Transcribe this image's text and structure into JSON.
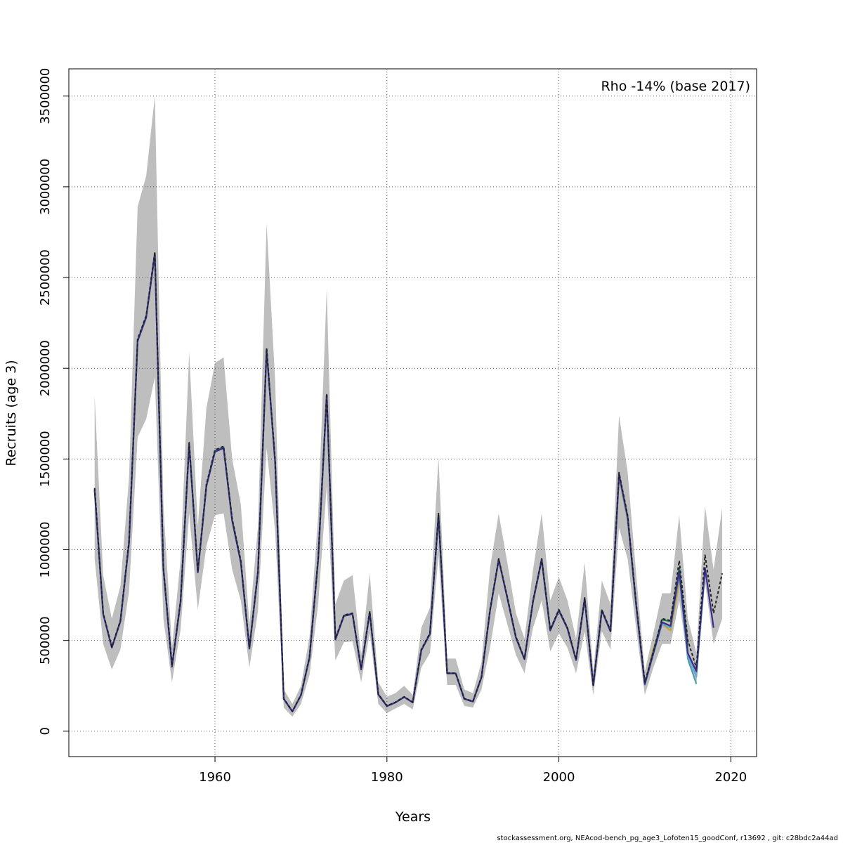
{
  "chart_data": {
    "type": "line",
    "title": "",
    "xlabel": "Years",
    "ylabel": "Recruits (age 3)",
    "annotation": "Rho -14% (base 2017)",
    "footer": "stockassessment.org, NEAcod-bench_pg_age3_Lofoten15_goodConf, r13692 , git: c28bdc2a44ad",
    "xlim": [
      1943,
      2023
    ],
    "ylim": [
      -140000,
      3650000
    ],
    "x_ticks": [
      1960,
      1980,
      2000,
      2020
    ],
    "x_tick_labels": [
      "1960",
      "1980",
      "2000",
      "2020"
    ],
    "y_ticks": [
      0,
      500000,
      1000000,
      1500000,
      2000000,
      2500000,
      3000000,
      3500000
    ],
    "y_tick_labels": [
      "0",
      "500000",
      "1000000",
      "1500000",
      "2000000",
      "2500000",
      "3000000",
      "3500000"
    ],
    "grid": true,
    "colors": {
      "band": "#bebebe",
      "base": "#c8a02a",
      "peel1": "#1f7a4e",
      "peel2": "#6aa6d6",
      "peel3": "#3c2c8c",
      "peel4": "#4aa0a8",
      "full": "#222222"
    },
    "confidence_band": {
      "x": [
        1946,
        1947,
        1948,
        1949,
        1950,
        1951,
        1952,
        1953,
        1954,
        1955,
        1956,
        1957,
        1958,
        1959,
        1960,
        1961,
        1962,
        1963,
        1964,
        1965,
        1966,
        1967,
        1968,
        1969,
        1970,
        1971,
        1972,
        1973,
        1974,
        1975,
        1976,
        1977,
        1978,
        1979,
        1980,
        1981,
        1982,
        1983,
        1984,
        1985,
        1986,
        1987,
        1988,
        1989,
        1990,
        1991,
        1992,
        1993,
        1994,
        1995,
        1996,
        1997,
        1998,
        1999,
        2000,
        2001,
        2002,
        2003,
        2004,
        2005,
        2006,
        2007,
        2008,
        2009,
        2010,
        2011,
        2012,
        2013,
        2014,
        2015,
        2016,
        2017,
        2018,
        2019
      ],
      "lower": [
        950000,
        480000,
        340000,
        450000,
        770000,
        1620000,
        1720000,
        1950000,
        620000,
        270000,
        560000,
        1200000,
        670000,
        1020000,
        1190000,
        1200000,
        890000,
        720000,
        350000,
        660000,
        1560000,
        1100000,
        130000,
        80000,
        150000,
        310000,
        700000,
        1350000,
        390000,
        490000,
        495000,
        270000,
        540000,
        150000,
        100000,
        125000,
        150000,
        120000,
        350000,
        430000,
        970000,
        255000,
        255000,
        140000,
        130000,
        230000,
        460000,
        760000,
        590000,
        420000,
        320000,
        570000,
        720000,
        440000,
        540000,
        460000,
        320000,
        550000,
        200000,
        550000,
        450000,
        1120000,
        950000,
        560000,
        200000,
        350000,
        480000,
        480000,
        720000,
        380000,
        260000,
        820000,
        480000,
        620000
      ],
      "upper": [
        1850000,
        860000,
        620000,
        800000,
        1400000,
        2890000,
        3060000,
        3500000,
        1250000,
        460000,
        950000,
        2090000,
        1130000,
        1780000,
        2030000,
        2060000,
        1500000,
        1250000,
        590000,
        1130000,
        2800000,
        1930000,
        230000,
        150000,
        250000,
        520000,
        1190000,
        2440000,
        700000,
        830000,
        860000,
        420000,
        870000,
        270000,
        190000,
        210000,
        250000,
        200000,
        570000,
        680000,
        1510000,
        400000,
        400000,
        230000,
        210000,
        380000,
        900000,
        1200000,
        930000,
        650000,
        510000,
        890000,
        1200000,
        720000,
        850000,
        720000,
        510000,
        930000,
        330000,
        830000,
        700000,
        1740000,
        1430000,
        860000,
        330000,
        540000,
        760000,
        760000,
        1190000,
        620000,
        430000,
        1240000,
        890000,
        1230000
      ]
    },
    "series": [
      {
        "x": [
          1946,
          1947,
          1948,
          1949,
          1950,
          1951,
          1952,
          1953,
          1954,
          1955,
          1956,
          1957,
          1958,
          1959,
          1960,
          1961,
          1962,
          1963,
          1964,
          1965,
          1966,
          1967,
          1968,
          1969,
          1970,
          1971,
          1972,
          1973,
          1974,
          1975,
          1976,
          1977,
          1978,
          1979,
          1980,
          1981,
          1982,
          1983,
          1984,
          1985,
          1986,
          1987,
          1988,
          1989,
          1990,
          1991,
          1992,
          1993,
          1994,
          1995,
          1996,
          1997,
          1998,
          1999,
          2000,
          2001,
          2002,
          2003,
          2004,
          2005,
          2006,
          2007,
          2008,
          2009,
          2010,
          2011,
          2012,
          2013,
          2014,
          2015,
          2016,
          2017,
          2018,
          2019
        ],
        "values": [
          1340000,
          650000,
          465000,
          610000,
          1050000,
          2160000,
          2290000,
          2640000,
          900000,
          360000,
          720000,
          1590000,
          880000,
          1360000,
          1550000,
          1570000,
          1170000,
          940000,
          460000,
          880000,
          2110000,
          1490000,
          180000,
          110000,
          200000,
          410000,
          950000,
          1860000,
          510000,
          640000,
          650000,
          345000,
          660000,
          205000,
          140000,
          160000,
          190000,
          160000,
          450000,
          540000,
          1200000,
          320000,
          320000,
          180000,
          165000,
          300000,
          670000,
          950000,
          740000,
          520000,
          400000,
          720000,
          950000,
          560000,
          670000,
          570000,
          395000,
          735000,
          255000,
          670000,
          555000,
          1425000,
          1190000,
          700000,
          270000,
          440000,
          620000,
          610000,
          940000,
          500000,
          350000,
          970000,
          650000,
          870000
        ]
      },
      {
        "x": [
          1946,
          1947,
          1948,
          1949,
          1950,
          1951,
          1952,
          1953,
          1954,
          1955,
          1956,
          1957,
          1958,
          1959,
          1960,
          1961,
          1962,
          1963,
          1964,
          1965,
          1966,
          1967,
          1968,
          1969,
          1970,
          1971,
          1972,
          1973,
          1974,
          1975,
          1976,
          1977,
          1978,
          1979,
          1980,
          1981,
          1982,
          1983,
          1984,
          1985,
          1986,
          1987,
          1988,
          1989,
          1990,
          1991,
          1992,
          1993,
          1994,
          1995,
          1996,
          1997,
          1998,
          1999,
          2000,
          2001,
          2002,
          2003,
          2004,
          2005,
          2006,
          2007,
          2008,
          2009,
          2010,
          2011,
          2012,
          2013,
          2014,
          2015,
          2016,
          2017,
          2018
        ],
        "values": [
          1330000,
          645000,
          460000,
          605000,
          1040000,
          2150000,
          2280000,
          2630000,
          895000,
          355000,
          715000,
          1580000,
          875000,
          1350000,
          1540000,
          1560000,
          1160000,
          930000,
          455000,
          875000,
          2100000,
          1480000,
          178000,
          108000,
          198000,
          405000,
          945000,
          1850000,
          505000,
          635000,
          645000,
          340000,
          655000,
          202000,
          138000,
          158000,
          188000,
          158000,
          445000,
          535000,
          1190000,
          318000,
          318000,
          178000,
          163000,
          297000,
          665000,
          945000,
          735000,
          515000,
          397000,
          715000,
          945000,
          555000,
          665000,
          565000,
          392000,
          730000,
          252000,
          665000,
          550000,
          1415000,
          1180000,
          690000,
          260000,
          430000,
          600000,
          580000,
          880000,
          430000,
          330000,
          900000,
          570000
        ]
      },
      {
        "x": [
          1946,
          1947,
          1948,
          1949,
          1950,
          1951,
          1952,
          1953,
          1954,
          1955,
          1956,
          1957,
          1958,
          1959,
          1960,
          1961,
          1962,
          1963,
          1964,
          1965,
          1966,
          1967,
          1968,
          1969,
          1970,
          1971,
          1972,
          1973,
          1974,
          1975,
          1976,
          1977,
          1978,
          1979,
          1980,
          1981,
          1982,
          1983,
          1984,
          1985,
          1986,
          1987,
          1988,
          1989,
          1990,
          1991,
          1992,
          1993,
          1994,
          1995,
          1996,
          1997,
          1998,
          1999,
          2000,
          2001,
          2002,
          2003,
          2004,
          2005,
          2006,
          2007,
          2008,
          2009,
          2010,
          2011,
          2012,
          2013,
          2014,
          2015,
          2016,
          2017
        ],
        "values": [
          1330000,
          645000,
          460000,
          605000,
          1040000,
          2150000,
          2280000,
          2630000,
          895000,
          355000,
          715000,
          1580000,
          875000,
          1350000,
          1540000,
          1560000,
          1160000,
          930000,
          455000,
          875000,
          2100000,
          1480000,
          178000,
          108000,
          198000,
          405000,
          945000,
          1850000,
          505000,
          635000,
          645000,
          340000,
          655000,
          202000,
          138000,
          158000,
          188000,
          158000,
          445000,
          535000,
          1195000,
          318000,
          318000,
          178000,
          163000,
          297000,
          665000,
          945000,
          735000,
          515000,
          397000,
          715000,
          945000,
          555000,
          665000,
          565000,
          392000,
          730000,
          252000,
          665000,
          550000,
          1410000,
          1175000,
          690000,
          255000,
          425000,
          590000,
          570000,
          870000,
          420000,
          300000,
          880000
        ]
      },
      {
        "x": [
          1946,
          1947,
          1948,
          1949,
          1950,
          1951,
          1952,
          1953,
          1954,
          1955,
          1956,
          1957,
          1958,
          1959,
          1960,
          1961,
          1962,
          1963,
          1964,
          1965,
          1966,
          1967,
          1968,
          1969,
          1970,
          1971,
          1972,
          1973,
          1974,
          1975,
          1976,
          1977,
          1978,
          1979,
          1980,
          1981,
          1982,
          1983,
          1984,
          1985,
          1986,
          1987,
          1988,
          1989,
          1990,
          1991,
          1992,
          1993,
          1994,
          1995,
          1996,
          1997,
          1998,
          1999,
          2000,
          2001,
          2002,
          2003,
          2004,
          2005,
          2006,
          2007,
          2008,
          2009,
          2010,
          2011,
          2012,
          2013,
          2014,
          2015,
          2016
        ],
        "values": [
          1330000,
          645000,
          460000,
          605000,
          1040000,
          2150000,
          2280000,
          2630000,
          895000,
          355000,
          715000,
          1580000,
          875000,
          1350000,
          1540000,
          1560000,
          1160000,
          930000,
          455000,
          875000,
          2100000,
          1480000,
          178000,
          108000,
          198000,
          405000,
          945000,
          1850000,
          505000,
          635000,
          645000,
          340000,
          655000,
          202000,
          138000,
          158000,
          188000,
          158000,
          445000,
          535000,
          1195000,
          318000,
          318000,
          178000,
          163000,
          297000,
          665000,
          945000,
          735000,
          515000,
          397000,
          715000,
          945000,
          555000,
          665000,
          565000,
          392000,
          730000,
          252000,
          665000,
          550000,
          1405000,
          1170000,
          685000,
          255000,
          430000,
          595000,
          575000,
          860000,
          400000,
          260000
        ]
      },
      {
        "x": [
          1946,
          1947,
          1948,
          1949,
          1950,
          1951,
          1952,
          1953,
          1954,
          1955,
          1956,
          1957,
          1958,
          1959,
          1960,
          1961,
          1962,
          1963,
          1964,
          1965,
          1966,
          1967,
          1968,
          1969,
          1970,
          1971,
          1972,
          1973,
          1974,
          1975,
          1976,
          1977,
          1978,
          1979,
          1980,
          1981,
          1982,
          1983,
          1984,
          1985,
          1986,
          1987,
          1988,
          1989,
          1990,
          1991,
          1992,
          1993,
          1994,
          1995,
          1996,
          1997,
          1998,
          1999,
          2000,
          2001,
          2002,
          2003,
          2004,
          2005,
          2006,
          2007,
          2008,
          2009,
          2010,
          2011,
          2012,
          2013,
          2014,
          2015
        ],
        "values": [
          1335000,
          648000,
          462000,
          608000,
          1045000,
          2155000,
          2285000,
          2635000,
          898000,
          358000,
          718000,
          1585000,
          878000,
          1355000,
          1545000,
          1565000,
          1165000,
          935000,
          458000,
          878000,
          2105000,
          1485000,
          179000,
          109000,
          199000,
          408000,
          948000,
          1855000,
          508000,
          638000,
          648000,
          342000,
          658000,
          204000,
          139000,
          159000,
          189000,
          159000,
          448000,
          538000,
          1195000,
          319000,
          319000,
          179000,
          164000,
          298000,
          668000,
          948000,
          738000,
          518000,
          398000,
          718000,
          950000,
          558000,
          668000,
          568000,
          394000,
          732000,
          254000,
          668000,
          552000,
          1415000,
          1180000,
          695000,
          262000,
          440000,
          615000,
          605000,
          900000,
          480000
        ]
      },
      {
        "x": [
          1946,
          1947,
          1948,
          1949,
          1950,
          1951,
          1952,
          1953,
          1954,
          1955,
          1956,
          1957,
          1958,
          1959,
          1960,
          1961,
          1962,
          1963,
          1964,
          1965,
          1966,
          1967,
          1968,
          1969,
          1970,
          1971,
          1972,
          1973,
          1974,
          1975,
          1976,
          1977,
          1978,
          1979,
          1980,
          1981,
          1982,
          1983,
          1984,
          1985,
          1986,
          1987,
          1988,
          1989,
          1990,
          1991,
          1992,
          1993,
          1994,
          1995,
          1996,
          1997,
          1998,
          1999,
          2000,
          2001,
          2002,
          2003,
          2004,
          2005,
          2006,
          2007,
          2008,
          2009,
          2010,
          2011,
          2012,
          2013,
          2014
        ],
        "values": [
          1330000,
          645000,
          460000,
          605000,
          1040000,
          2150000,
          2280000,
          2630000,
          895000,
          355000,
          715000,
          1580000,
          875000,
          1350000,
          1540000,
          1560000,
          1160000,
          930000,
          455000,
          875000,
          2100000,
          1480000,
          178000,
          108000,
          198000,
          405000,
          945000,
          1850000,
          505000,
          635000,
          645000,
          340000,
          655000,
          202000,
          138000,
          158000,
          188000,
          158000,
          445000,
          535000,
          1185000,
          318000,
          318000,
          178000,
          163000,
          297000,
          665000,
          945000,
          735000,
          515000,
          397000,
          715000,
          945000,
          555000,
          665000,
          565000,
          392000,
          730000,
          252000,
          665000,
          550000,
          1400000,
          1165000,
          685000,
          258000,
          455000,
          590000,
          555000,
          820000
        ]
      }
    ]
  }
}
